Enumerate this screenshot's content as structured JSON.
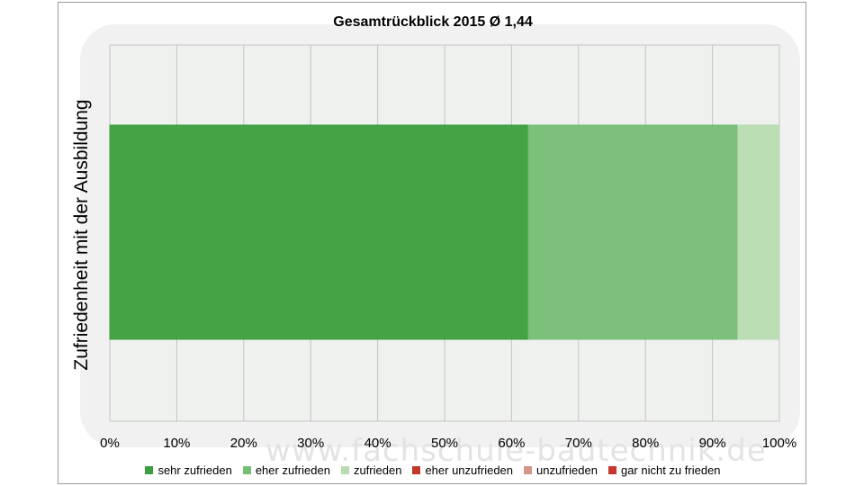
{
  "chart_data": {
    "type": "bar",
    "orientation": "horizontal",
    "stacked": "percent",
    "title": "Gesamtrückblick 2015 Ø 1,44",
    "ylabel": "Zufriedenheit mit der Ausbildung",
    "xlabel": "",
    "xlim": [
      0,
      100
    ],
    "x_ticks": [
      "0%",
      "10%",
      "20%",
      "30%",
      "40%",
      "50%",
      "60%",
      "70%",
      "80%",
      "90%",
      "100%"
    ],
    "grid": true,
    "legend_position": "bottom",
    "categories": [
      ""
    ],
    "series": [
      {
        "name": "sehr zufrieden",
        "values": [
          62.5
        ],
        "color": "#3c9e3c"
      },
      {
        "name": "eher zufrieden",
        "values": [
          31.3
        ],
        "color": "#76bd76"
      },
      {
        "name": "zufrieden",
        "values": [
          6.2
        ],
        "color": "#b7dcb1"
      },
      {
        "name": "eher unzufrieden",
        "values": [
          0
        ],
        "color": "#c0392b"
      },
      {
        "name": "unzufrieden",
        "values": [
          0
        ],
        "color": "#d4948a"
      },
      {
        "name": "gar nicht zu frieden",
        "values": [
          0
        ],
        "color": "#c8372d"
      }
    ]
  },
  "watermark": {
    "text": "www.fachschule-bautechnik.de"
  }
}
